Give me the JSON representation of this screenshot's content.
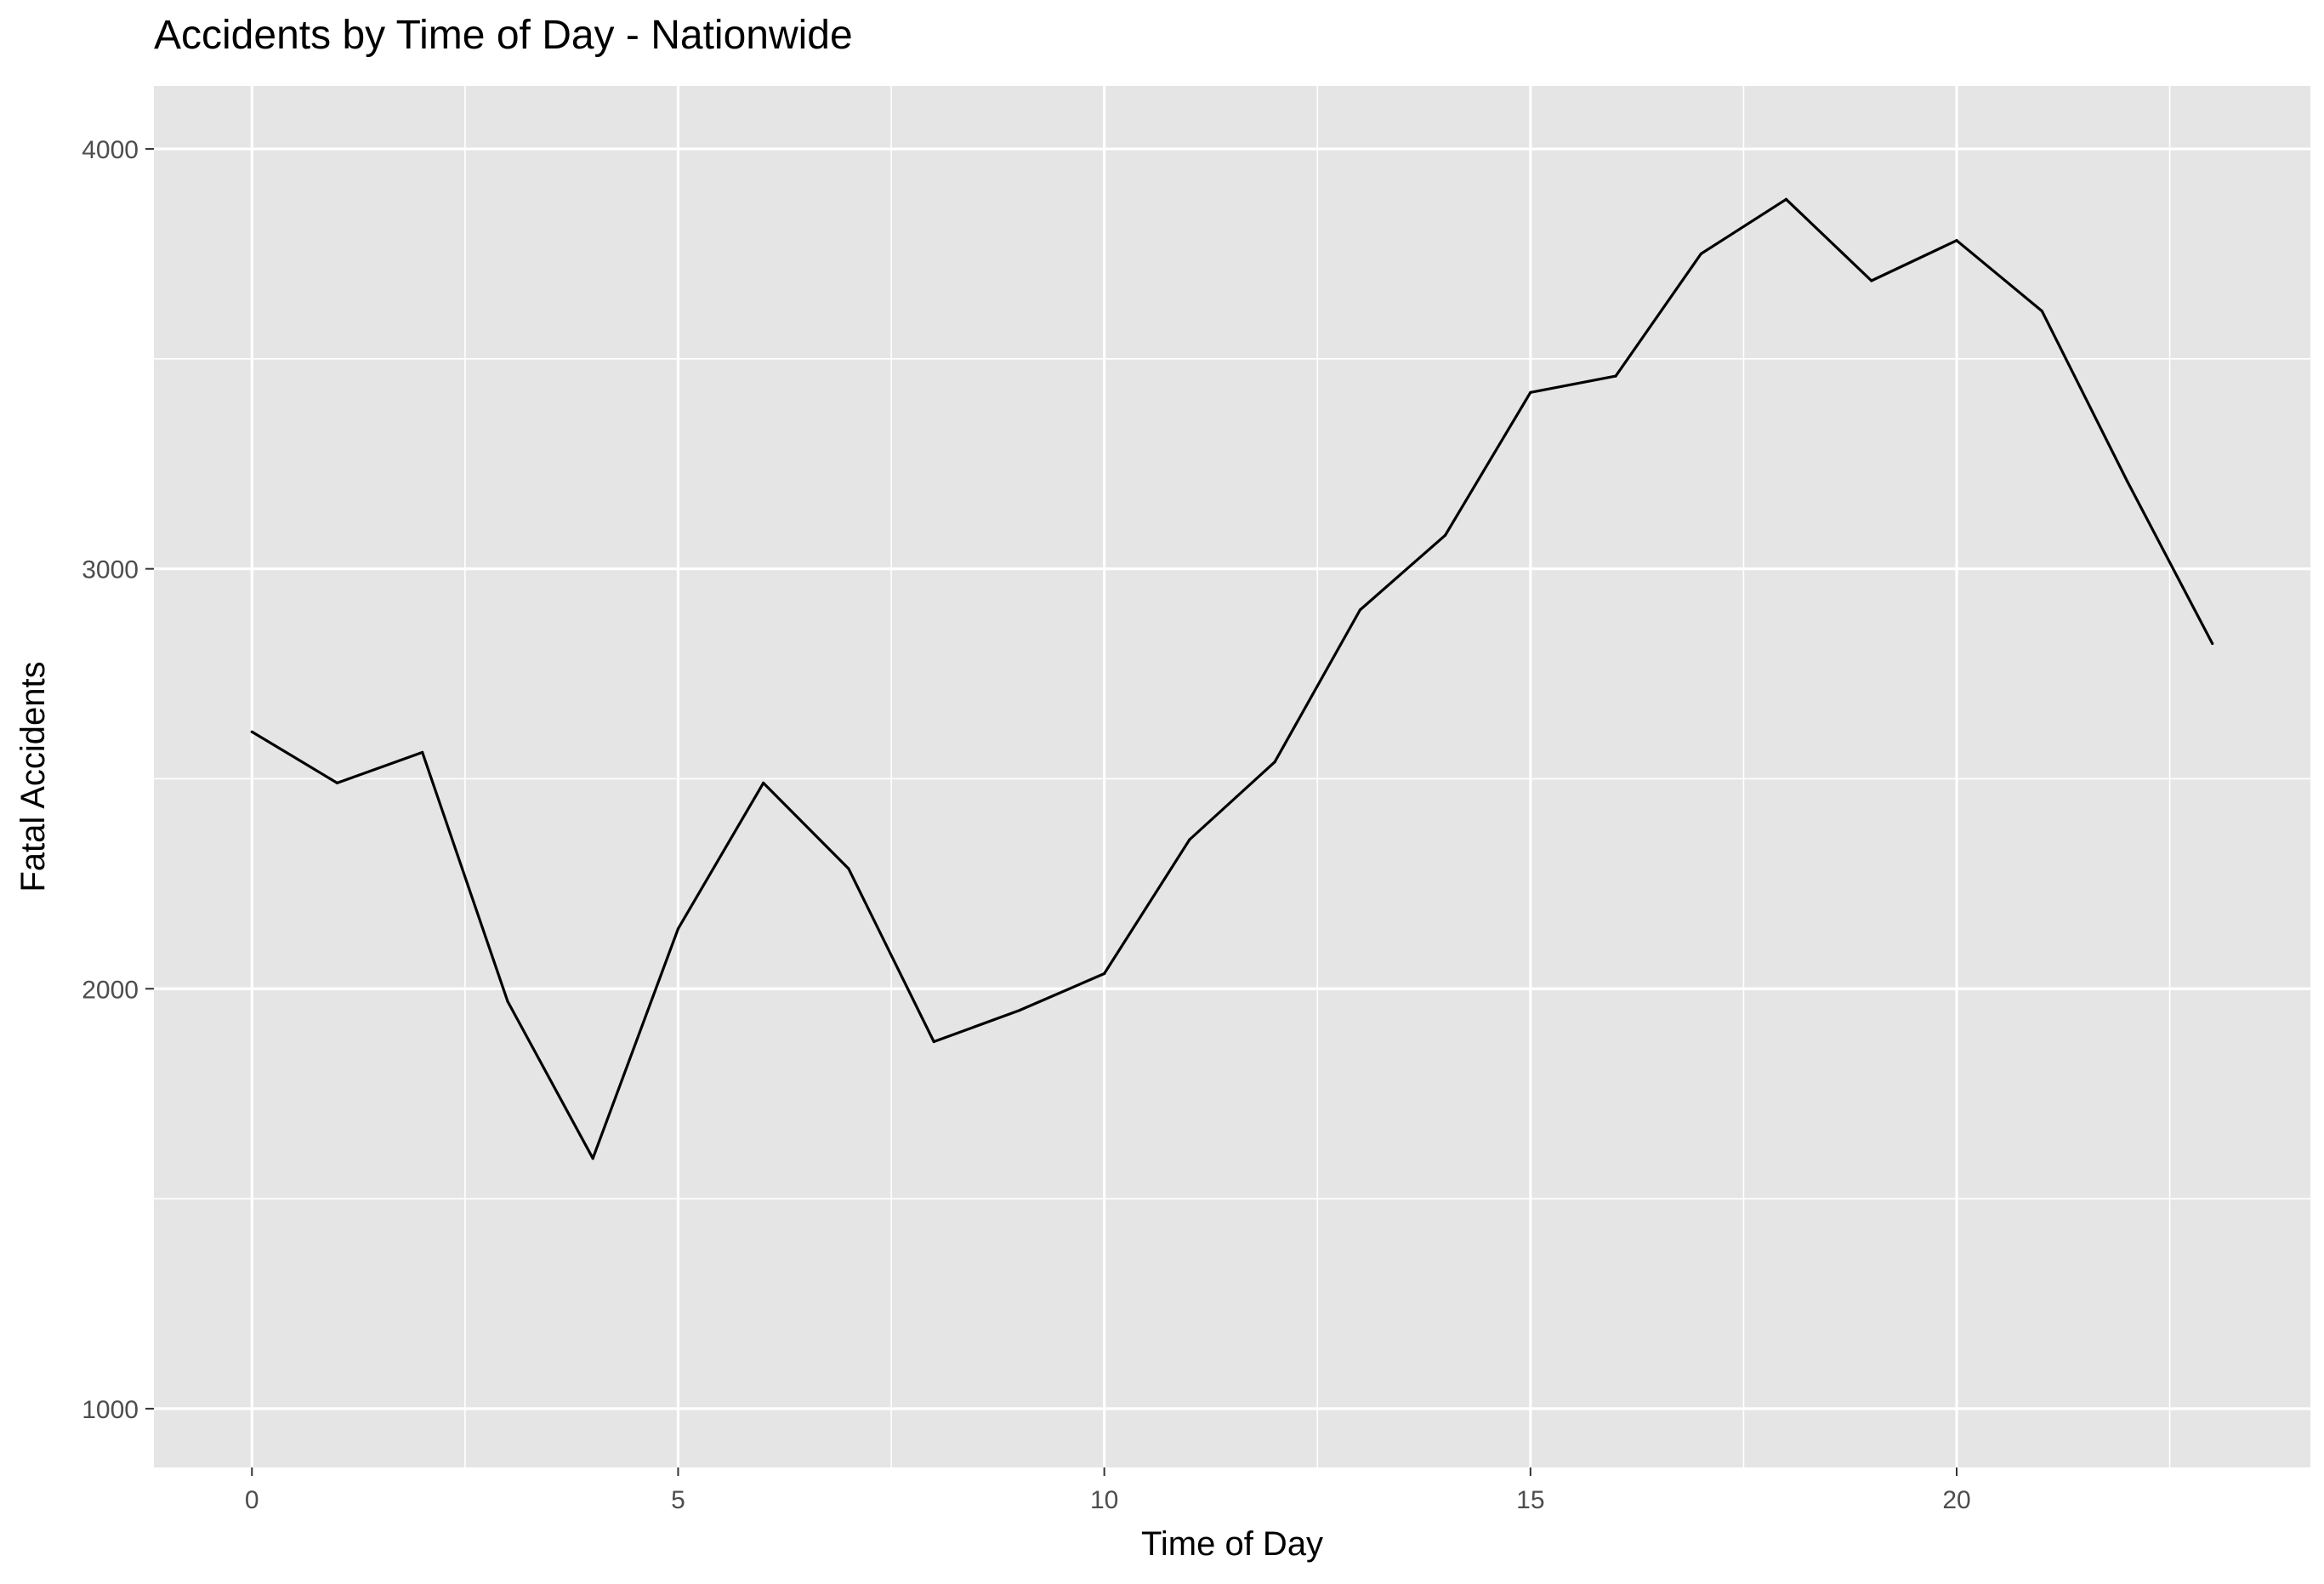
{
  "chart_data": {
    "type": "line",
    "title": "Accidents by Time of Day - Nationwide",
    "xlabel": "Time of Day",
    "ylabel": "Fatal Accidents",
    "xlim": [
      -1.15,
      24.15
    ],
    "ylim": [
      860,
      4150
    ],
    "x_ticks": [
      0,
      5,
      10,
      15,
      20
    ],
    "x_tick_labels": [
      "0",
      "5",
      "10",
      "15",
      "20"
    ],
    "x_minor_ticks": [
      2.5,
      7.5,
      12.5,
      17.5,
      22.5
    ],
    "y_ticks": [
      1000,
      2000,
      3000,
      4000
    ],
    "y_tick_labels": [
      "1000",
      "2000",
      "3000",
      "4000"
    ],
    "y_minor_ticks": [
      1500,
      2500,
      3500
    ],
    "grid": true,
    "legend": "none",
    "colors": {
      "panel": "#e5e5e5",
      "grid": "#ffffff",
      "line": "#000000",
      "tick": "#333333"
    },
    "series": [
      {
        "x": [
          0,
          1,
          2,
          3,
          4,
          5,
          6,
          7,
          8,
          9,
          10,
          11,
          12,
          13,
          14,
          15,
          16,
          17,
          18,
          19,
          20,
          21,
          22,
          23
        ],
        "values": [
          2612,
          2490,
          2563,
          1970,
          1596,
          2143,
          2490,
          2286,
          1874,
          1948,
          2036,
          2355,
          2540,
          2902,
          3080,
          3420,
          3459,
          3750,
          3880,
          3686,
          3782,
          3614,
          3209,
          2822
        ]
      }
    ]
  }
}
